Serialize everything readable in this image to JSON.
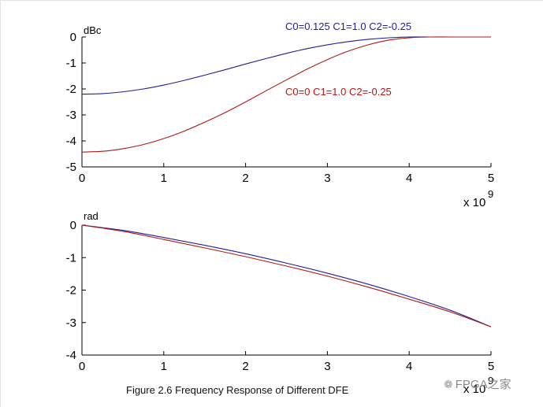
{
  "chart_data": [
    {
      "type": "line",
      "title": "",
      "ylabel": "dBc",
      "xlabel": "",
      "x_exponent_label": "x 10",
      "x_exponent_power": "9",
      "xlim": [
        0,
        5
      ],
      "ylim": [
        -5,
        0
      ],
      "xticks": [
        "0",
        "1",
        "2",
        "3",
        "4",
        "5"
      ],
      "yticks": [
        "0",
        "-1",
        "-2",
        "-3",
        "-4",
        "-5"
      ],
      "grid": false,
      "series": [
        {
          "name": "C0=0.125 C1=1.0 C2=-0.25",
          "color": "#1f1f9a",
          "x": [
            0,
            0.25,
            0.5,
            0.75,
            1,
            1.25,
            1.5,
            1.75,
            2,
            2.25,
            2.5,
            2.75,
            3,
            3.25,
            3.5,
            3.75,
            4,
            4.25,
            4.5,
            4.75,
            5
          ],
          "y": [
            -2.2,
            -2.18,
            -2.11,
            -2.0,
            -1.85,
            -1.67,
            -1.47,
            -1.26,
            -1.04,
            -0.83,
            -0.63,
            -0.45,
            -0.3,
            -0.18,
            -0.09,
            -0.03,
            0,
            0,
            0,
            0,
            0
          ]
        },
        {
          "name": "C0=0 C1=1.0 C2=-0.25",
          "color": "#b01818",
          "x": [
            0,
            0.25,
            0.5,
            0.75,
            1,
            1.25,
            1.5,
            1.75,
            2,
            2.25,
            2.5,
            2.75,
            3,
            3.25,
            3.5,
            3.75,
            4,
            4.25,
            4.5,
            4.75,
            5
          ],
          "y": [
            -4.43,
            -4.4,
            -4.3,
            -4.14,
            -3.91,
            -3.62,
            -3.28,
            -2.91,
            -2.5,
            -2.07,
            -1.65,
            -1.24,
            -0.87,
            -0.55,
            -0.3,
            -0.12,
            -0.03,
            0,
            0,
            0,
            0
          ]
        }
      ]
    },
    {
      "type": "line",
      "title": "",
      "ylabel": "rad",
      "xlabel": "",
      "x_exponent_label": "x 10",
      "x_exponent_power": "9",
      "xlim": [
        0,
        5
      ],
      "ylim": [
        -4,
        0
      ],
      "xticks": [
        "0",
        "1",
        "2",
        "3",
        "4",
        "5"
      ],
      "yticks": [
        "0",
        "-1",
        "-2",
        "-3",
        "-4"
      ],
      "grid": false,
      "series": [
        {
          "name": "C0=0.125 C1=1.0 C2=-0.25",
          "color": "#1f1f9a",
          "x": [
            0,
            0.5,
            1,
            1.5,
            2,
            2.5,
            3,
            3.5,
            4,
            4.5,
            5
          ],
          "y": [
            0,
            -0.16,
            -0.38,
            -0.62,
            -0.88,
            -1.17,
            -1.48,
            -1.82,
            -2.2,
            -2.62,
            -3.13
          ]
        },
        {
          "name": "C0=0 C1=1.0 C2=-0.25",
          "color": "#b01818",
          "x": [
            0,
            0.5,
            1,
            1.5,
            2,
            2.5,
            3,
            3.5,
            4,
            4.5,
            5
          ],
          "y": [
            0,
            -0.19,
            -0.44,
            -0.7,
            -0.97,
            -1.26,
            -1.57,
            -1.91,
            -2.28,
            -2.67,
            -3.13
          ]
        }
      ]
    }
  ],
  "caption": "Figure 2.6 Frequency Response of Different DFE",
  "watermark": {
    "text": "FPGA之家",
    "icon": "wechat-icon"
  }
}
